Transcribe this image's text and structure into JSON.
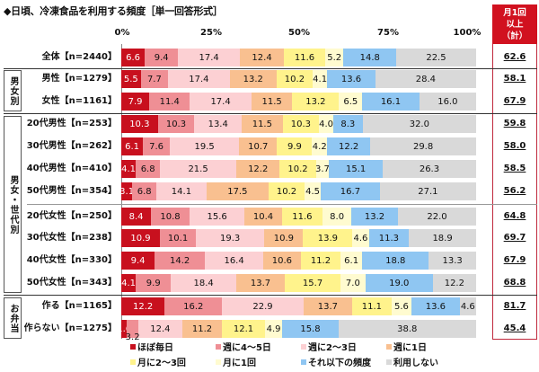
{
  "title": "◆日頃、冷凍食品を利用する頻度［単一回答形式］",
  "axis": {
    "ticks": [
      "0%",
      "25%",
      "50%",
      "75%",
      "100%"
    ]
  },
  "summary_header": {
    "line1": "月1回",
    "line2": "以上",
    "line3": "（計）"
  },
  "groups": [
    {
      "label": "男女別"
    },
    {
      "label": "男女・世代別"
    },
    {
      "label": "お弁当"
    }
  ],
  "legend": [
    {
      "label": "ほぼ毎日",
      "color": "#c8101e"
    },
    {
      "label": "週に4～5日",
      "color": "#ef8f95"
    },
    {
      "label": "週に2～3日",
      "color": "#fcd0d3"
    },
    {
      "label": "週に1日",
      "color": "#f9c090"
    },
    {
      "label": "月に2～3回",
      "color": "#fff38c"
    },
    {
      "label": "月に1回",
      "color": "#fffbd0"
    },
    {
      "label": "それ以下の頻度",
      "color": "#8fc6f2"
    },
    {
      "label": "利用しない",
      "color": "#d9d9d9"
    }
  ],
  "rows": [
    {
      "label": "全体【n=2440】",
      "values": [
        "6.6",
        "9.4",
        "17.4",
        "12.4",
        "11.6",
        "5.2",
        "14.8",
        "22.5"
      ],
      "sum": "62.6"
    },
    {
      "label": "男性【n=1279】",
      "values": [
        "5.5",
        "7.7",
        "17.4",
        "13.2",
        "10.2",
        "4.1",
        "13.6",
        "28.4"
      ],
      "sum": "58.1"
    },
    {
      "label": "女性【n=1161】",
      "values": [
        "7.9",
        "11.4",
        "17.4",
        "11.5",
        "13.2",
        "6.5",
        "16.1",
        "16.0"
      ],
      "sum": "67.9"
    },
    {
      "label": "20代男性【n=253】",
      "values": [
        "10.3",
        "10.3",
        "13.4",
        "11.5",
        "10.3",
        "4.0",
        "8.3",
        "32.0"
      ],
      "sum": "59.8"
    },
    {
      "label": "30代男性【n=262】",
      "values": [
        "6.1",
        "7.6",
        "19.5",
        "10.7",
        "9.9",
        "4.2",
        "12.2",
        "29.8"
      ],
      "sum": "58.0"
    },
    {
      "label": "40代男性【n=410】",
      "values": [
        "4.1",
        "6.8",
        "21.5",
        "12.2",
        "10.2",
        "3.7",
        "15.1",
        "26.3"
      ],
      "sum": "58.5"
    },
    {
      "label": "50代男性【n=354】",
      "values": [
        "3.1",
        "6.8",
        "14.1",
        "17.5",
        "10.2",
        "4.5",
        "16.7",
        "27.1"
      ],
      "sum": "56.2"
    },
    {
      "label": "20代女性【n=250】",
      "values": [
        "8.4",
        "10.8",
        "15.6",
        "10.4",
        "11.6",
        "8.0",
        "13.2",
        "22.0"
      ],
      "sum": "64.8"
    },
    {
      "label": "30代女性【n=238】",
      "values": [
        "10.9",
        "10.1",
        "19.3",
        "10.9",
        "13.9",
        "4.6",
        "11.3",
        "18.9"
      ],
      "sum": "69.7"
    },
    {
      "label": "40代女性【n=330】",
      "values": [
        "9.4",
        "14.2",
        "16.4",
        "10.6",
        "11.2",
        "6.1",
        "18.8",
        "13.3"
      ],
      "sum": "67.9"
    },
    {
      "label": "50代女性【n=343】",
      "values": [
        "4.1",
        "9.9",
        "18.4",
        "13.7",
        "15.7",
        "7.0",
        "19.0",
        "12.2"
      ],
      "sum": "68.8"
    },
    {
      "label": "作る【n=1165】",
      "values": [
        "12.2",
        "16.2",
        "22.9",
        "13.7",
        "11.1",
        "5.6",
        "13.6",
        "4.6"
      ],
      "sum": "81.7"
    },
    {
      "label": "作らない【n=1275】",
      "values": [
        "1.6",
        "3.2",
        "12.4",
        "11.2",
        "12.1",
        "4.9",
        "15.8",
        "38.8"
      ],
      "sum": "45.4"
    }
  ],
  "chart_data": {
    "type": "bar",
    "orientation": "horizontal-stacked-100",
    "title": "◆日頃、冷凍食品を利用する頻度［単一回答形式］",
    "xlabel": "",
    "ylabel": "",
    "xlim": [
      0,
      100
    ],
    "xticks": [
      "0%",
      "25%",
      "50%",
      "75%",
      "100%"
    ],
    "grid": false,
    "legend_position": "bottom",
    "categories": [
      "全体【n=2440】",
      "男性【n=1279】",
      "女性【n=1161】",
      "20代男性【n=253】",
      "30代男性【n=262】",
      "40代男性【n=410】",
      "50代男性【n=354】",
      "20代女性【n=250】",
      "30代女性【n=238】",
      "40代女性【n=330】",
      "50代女性【n=343】",
      "作る【n=1165】",
      "作らない【n=1275】"
    ],
    "groups": [
      {
        "label": "男女別",
        "categories": [
          "男性【n=1279】",
          "女性【n=1161】"
        ]
      },
      {
        "label": "男女・世代別",
        "categories": [
          "20代男性【n=253】",
          "30代男性【n=262】",
          "40代男性【n=410】",
          "50代男性【n=354】",
          "20代女性【n=250】",
          "30代女性【n=238】",
          "40代女性【n=330】",
          "50代女性【n=343】"
        ]
      },
      {
        "label": "お弁当",
        "categories": [
          "作る【n=1165】",
          "作らない【n=1275】"
        ]
      }
    ],
    "series": [
      {
        "name": "ほぼ毎日",
        "values": [
          6.6,
          5.5,
          7.9,
          10.3,
          6.1,
          4.1,
          3.1,
          8.4,
          10.9,
          9.4,
          4.1,
          12.2,
          1.6
        ]
      },
      {
        "name": "週に4～5日",
        "values": [
          9.4,
          7.7,
          11.4,
          10.3,
          7.6,
          6.8,
          6.8,
          10.8,
          10.1,
          14.2,
          9.9,
          16.2,
          3.2
        ]
      },
      {
        "name": "週に2～3日",
        "values": [
          17.4,
          17.4,
          17.4,
          13.4,
          19.5,
          21.5,
          14.1,
          15.6,
          19.3,
          16.4,
          18.4,
          22.9,
          12.4
        ]
      },
      {
        "name": "週に1日",
        "values": [
          12.4,
          13.2,
          11.5,
          11.5,
          10.7,
          12.2,
          17.5,
          10.4,
          10.9,
          10.6,
          13.7,
          13.7,
          11.2
        ]
      },
      {
        "name": "月に2～3回",
        "values": [
          11.6,
          10.2,
          13.2,
          10.3,
          9.9,
          10.2,
          10.2,
          11.6,
          13.9,
          11.2,
          15.7,
          11.1,
          12.1
        ]
      },
      {
        "name": "月に1回",
        "values": [
          5.2,
          4.1,
          6.5,
          4.0,
          4.2,
          3.7,
          4.5,
          8.0,
          4.6,
          6.1,
          7.0,
          5.6,
          4.9
        ]
      },
      {
        "name": "それ以下の頻度",
        "values": [
          14.8,
          13.6,
          16.1,
          8.3,
          12.2,
          15.1,
          16.7,
          13.2,
          11.3,
          18.8,
          19.0,
          13.6,
          15.8
        ]
      },
      {
        "name": "利用しない",
        "values": [
          22.5,
          28.4,
          16.0,
          32.0,
          29.8,
          26.3,
          27.1,
          22.0,
          18.9,
          13.3,
          12.2,
          4.6,
          38.8
        ]
      }
    ],
    "summary_column": {
      "label": "月1回以上（計）",
      "values": [
        62.6,
        58.1,
        67.9,
        59.8,
        58.0,
        58.5,
        56.2,
        64.8,
        69.7,
        67.9,
        68.8,
        81.7,
        45.4
      ]
    }
  }
}
